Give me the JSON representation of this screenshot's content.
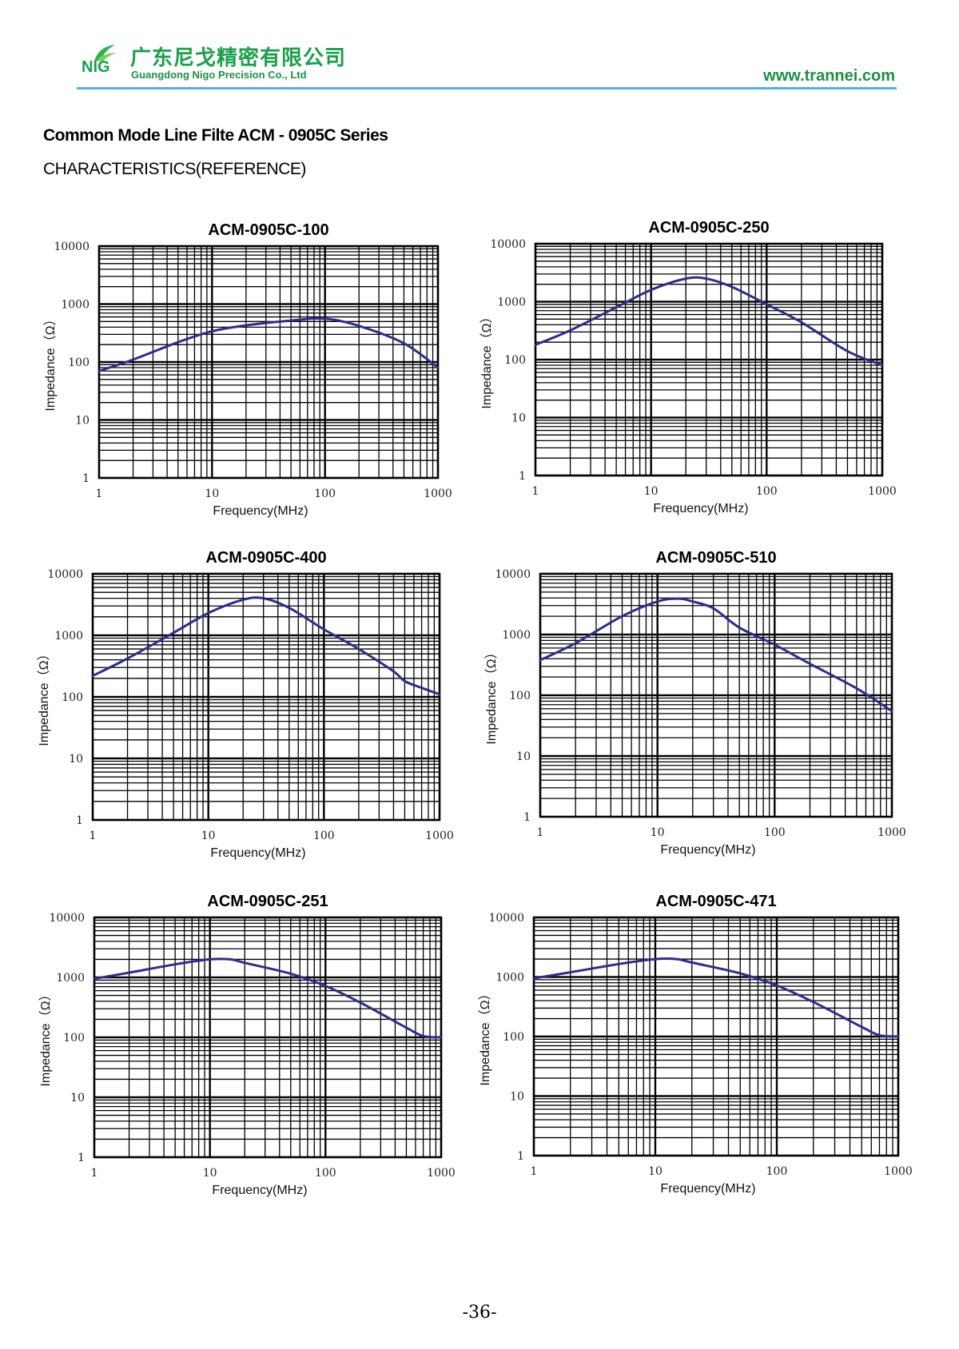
{
  "header": {
    "logo_text": "NIG",
    "company_cn": "广东尼戈精密有限公司",
    "company_en": "Guangdong Nigo Precision Co., Ltd",
    "website": "www.trannei.com",
    "brand_color": "#1d8f45",
    "rule_color": "#4db1e6"
  },
  "page": {
    "title": "Common Mode Line Filte ACM - 0905C  Series",
    "subtitle": "CHARACTERISTICS(REFERENCE)",
    "page_number": "-36-"
  },
  "chart_data": [
    {
      "type": "line",
      "title": "ACM-0905C-100",
      "xlabel": "Frequency(MHz)",
      "ylabel": "Impedance（Ω）",
      "xscale": "log",
      "yscale": "log",
      "xlim": [
        1,
        1000
      ],
      "ylim": [
        1,
        10000
      ],
      "xticks": [
        "1",
        "10",
        "100",
        "1000"
      ],
      "yticks": [
        "1",
        "10",
        "100",
        "1000",
        "10000"
      ],
      "grid": true,
      "line_color": "#2b2f8c",
      "series": [
        {
          "x": [
            1,
            2,
            5,
            10,
            20,
            50,
            100,
            200,
            500,
            1000
          ],
          "values": [
            70,
            110,
            220,
            340,
            430,
            520,
            560,
            420,
            210,
            80
          ]
        }
      ]
    },
    {
      "type": "line",
      "title": "ACM-0905C-250",
      "xlabel": "Frequency(MHz)",
      "ylabel": "Impedance（Ω）",
      "xscale": "log",
      "yscale": "log",
      "xlim": [
        1,
        1000
      ],
      "ylim": [
        1,
        10000
      ],
      "xticks": [
        "1",
        "10",
        "100",
        "1000"
      ],
      "yticks": [
        "1",
        "10",
        "100",
        "1000",
        "10000"
      ],
      "grid": true,
      "line_color": "#2b2f8c",
      "series": [
        {
          "x": [
            1,
            2,
            5,
            10,
            20,
            30,
            50,
            100,
            200,
            500,
            1000
          ],
          "values": [
            180,
            320,
            800,
            1600,
            2500,
            2500,
            1800,
            900,
            440,
            140,
            80
          ]
        }
      ]
    },
    {
      "type": "line",
      "title": "ACM-0905C-400",
      "xlabel": "Frequency(MHz)",
      "ylabel": "Impedance（Ω）",
      "xscale": "log",
      "yscale": "log",
      "xlim": [
        1,
        1000
      ],
      "ylim": [
        1,
        10000
      ],
      "xticks": [
        "1",
        "10",
        "100",
        "1000"
      ],
      "yticks": [
        "1",
        "10",
        "100",
        "1000",
        "10000"
      ],
      "grid": true,
      "line_color": "#2b2f8c",
      "series": [
        {
          "x": [
            1,
            2,
            5,
            10,
            20,
            30,
            50,
            100,
            200,
            400,
            500,
            700,
            1000
          ],
          "values": [
            220,
            420,
            1100,
            2300,
            3800,
            4000,
            2800,
            1250,
            600,
            260,
            180,
            140,
            110
          ]
        }
      ]
    },
    {
      "type": "line",
      "title": "ACM-0905C-510",
      "xlabel": "Frequency(MHz)",
      "ylabel": "Impedance（Ω）",
      "xscale": "log",
      "yscale": "log",
      "xlim": [
        1,
        1000
      ],
      "ylim": [
        1,
        10000
      ],
      "xticks": [
        "1",
        "10",
        "100",
        "1000"
      ],
      "yticks": [
        "1",
        "10",
        "100",
        "1000",
        "10000"
      ],
      "grid": true,
      "line_color": "#2b2f8c",
      "series": [
        {
          "x": [
            1,
            2,
            5,
            10,
            15,
            20,
            30,
            50,
            100,
            200,
            500,
            1000
          ],
          "values": [
            380,
            720,
            2000,
            3500,
            3900,
            3500,
            2700,
            1300,
            680,
            330,
            130,
            55
          ]
        }
      ]
    },
    {
      "type": "line",
      "title": "ACM-0905C-251",
      "xlabel": "Frequency(MHz)",
      "ylabel": "Impedance（Ω）",
      "xscale": "log",
      "yscale": "log",
      "xlim": [
        1,
        1000
      ],
      "ylim": [
        1,
        10000
      ],
      "xticks": [
        "1",
        "10",
        "100",
        "1000"
      ],
      "yticks": [
        "1",
        "10",
        "100",
        "1000",
        "10000"
      ],
      "grid": true,
      "line_color": "#2b2f8c",
      "series": [
        {
          "x": [
            1,
            2,
            5,
            10,
            15,
            20,
            50,
            100,
            200,
            500,
            700,
            1000
          ],
          "values": [
            950,
            1200,
            1650,
            2000,
            2000,
            1750,
            1150,
            720,
            380,
            145,
            105,
            100
          ]
        }
      ]
    },
    {
      "type": "line",
      "title": "ACM-0905C-471",
      "xlabel": "Frequency(MHz)",
      "ylabel": "Impedance（Ω）",
      "xscale": "log",
      "yscale": "log",
      "xlim": [
        1,
        1000
      ],
      "ylim": [
        1,
        10000
      ],
      "xticks": [
        "1",
        "10",
        "100",
        "1000"
      ],
      "yticks": [
        "1",
        "10",
        "100",
        "1000",
        "10000"
      ],
      "grid": true,
      "line_color": "#2b2f8c",
      "series": [
        {
          "x": [
            1,
            2,
            5,
            10,
            15,
            20,
            50,
            100,
            200,
            500,
            700,
            1000
          ],
          "values": [
            950,
            1200,
            1650,
            2000,
            2000,
            1750,
            1150,
            720,
            380,
            145,
            105,
            100
          ]
        }
      ]
    }
  ]
}
